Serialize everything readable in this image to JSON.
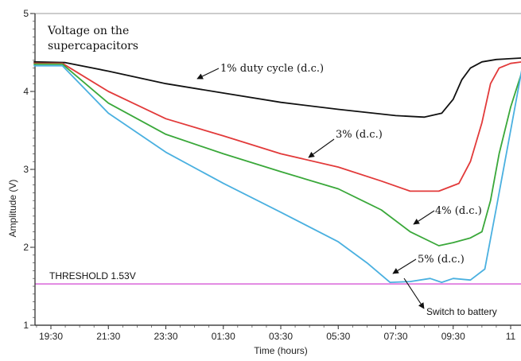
{
  "chart_data": {
    "type": "line",
    "title": "Voltage on the supercapacitors",
    "xlabel": "Time (hours)",
    "ylabel": "Amplitude (V)",
    "xlim": [
      0,
      17
    ],
    "ylim": [
      1,
      5
    ],
    "x_ticks": [
      {
        "x": 0,
        "label": "19:30"
      },
      {
        "x": 2,
        "label": "21:30"
      },
      {
        "x": 4,
        "label": "23:30"
      },
      {
        "x": 6,
        "label": "01:30"
      },
      {
        "x": 8,
        "label": "03:30"
      },
      {
        "x": 10,
        "label": "05:30"
      },
      {
        "x": 12,
        "label": "07:30"
      },
      {
        "x": 14,
        "label": "09:30"
      },
      {
        "x": 16,
        "label": "11"
      }
    ],
    "y_ticks": [
      1,
      2,
      3,
      4,
      5
    ],
    "threshold": {
      "value": 1.53,
      "label": "THRESHOLD 1.53V",
      "color": "#cc33cc"
    },
    "series": [
      {
        "name": "1% duty cycle (d.c.)",
        "label": "1%  duty cycle (d.c.)",
        "color": "#111111",
        "x": [
          -0.6,
          0.5,
          2,
          4,
          6,
          8,
          10,
          12,
          13,
          13.6,
          14,
          14.3,
          14.6,
          15,
          15.5,
          16.4
        ],
        "y": [
          4.38,
          4.37,
          4.26,
          4.1,
          3.98,
          3.86,
          3.77,
          3.69,
          3.67,
          3.72,
          3.9,
          4.15,
          4.3,
          4.38,
          4.41,
          4.43
        ]
      },
      {
        "name": "3% (d.c.)",
        "label": "3% (d.c.)",
        "color": "#e23a3a",
        "x": [
          -0.6,
          0.4,
          2,
          4,
          6,
          8,
          10,
          11.5,
          12.5,
          13.5,
          14.2,
          14.6,
          15,
          15.3,
          15.6,
          16,
          16.4
        ],
        "y": [
          4.36,
          4.36,
          4.0,
          3.65,
          3.43,
          3.2,
          3.03,
          2.85,
          2.72,
          2.72,
          2.82,
          3.1,
          3.6,
          4.1,
          4.3,
          4.36,
          4.38
        ]
      },
      {
        "name": "4% (d.c.)",
        "label": "4% (d.c.)",
        "color": "#3aa83a",
        "x": [
          -0.6,
          0.4,
          2,
          4,
          6,
          8,
          10,
          11.5,
          12.5,
          13.5,
          14,
          14.6,
          15,
          15.3,
          15.6,
          16,
          16.4
        ],
        "y": [
          4.35,
          4.35,
          3.85,
          3.45,
          3.2,
          2.97,
          2.75,
          2.48,
          2.2,
          2.02,
          2.06,
          2.12,
          2.2,
          2.6,
          3.2,
          3.8,
          4.26
        ]
      },
      {
        "name": "5% (d.c.)",
        "label": "5%  (d.c.)",
        "color": "#4ab0e0",
        "x": [
          -0.6,
          0.4,
          2,
          4,
          6,
          8,
          10,
          11,
          11.8,
          12.5,
          13.2,
          13.6,
          14,
          14.6,
          15.1,
          15.5,
          16,
          16.4
        ],
        "y": [
          4.33,
          4.33,
          3.72,
          3.22,
          2.82,
          2.45,
          2.07,
          1.8,
          1.55,
          1.56,
          1.6,
          1.55,
          1.6,
          1.58,
          1.72,
          2.5,
          3.5,
          4.3
        ]
      }
    ],
    "annotations": [
      {
        "text": "Switch to battery"
      }
    ]
  }
}
